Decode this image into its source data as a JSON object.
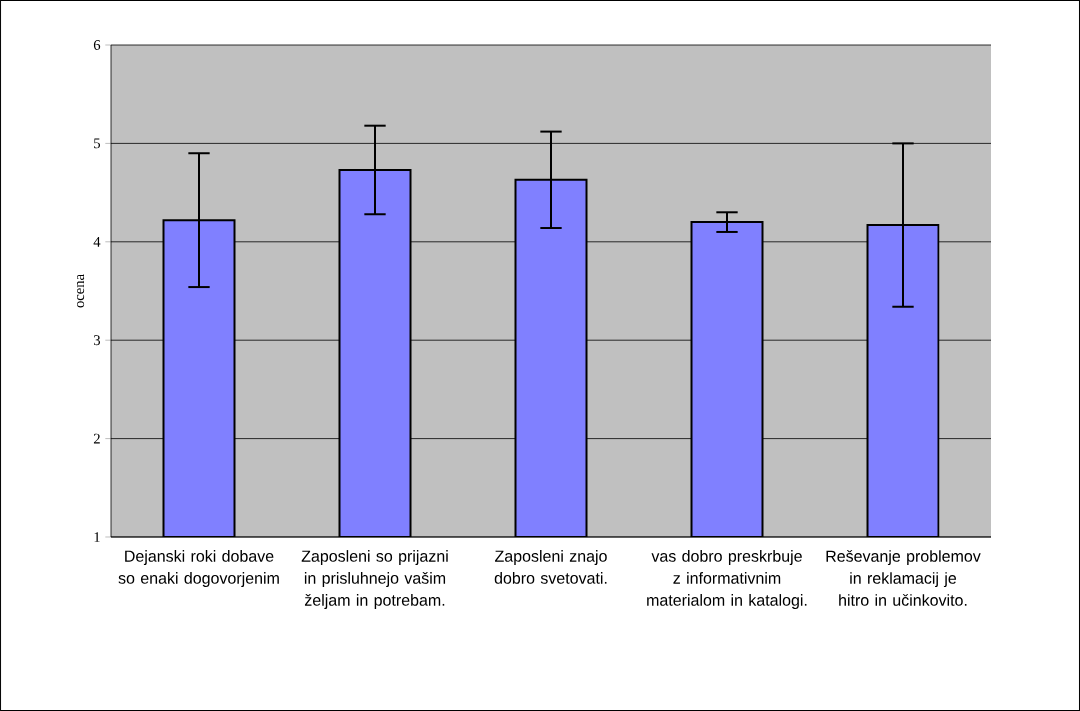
{
  "chart_data": {
    "type": "bar",
    "ylabel": "ocena",
    "categories": [
      "Dejanski roki dobave so enaki dogovorjenim",
      "Zaposleni so prijazni in prisluhnejo vašim željam in potrebam.",
      "Zaposleni znajo dobro svetovati.",
      "vas dobro preskrbuje z informativnim materialom in katalogi.",
      "Reševanje problemov in reklamacij je hitro in učinkovito."
    ],
    "values": [
      4.22,
      4.73,
      4.63,
      4.2,
      4.17
    ],
    "errors": [
      0.68,
      0.45,
      0.49,
      0.1,
      0.83
    ],
    "color": "#8080ff",
    "ylim": [
      1,
      6
    ],
    "yticks": [
      1,
      2,
      3,
      4,
      5,
      6
    ],
    "grid": "y"
  }
}
